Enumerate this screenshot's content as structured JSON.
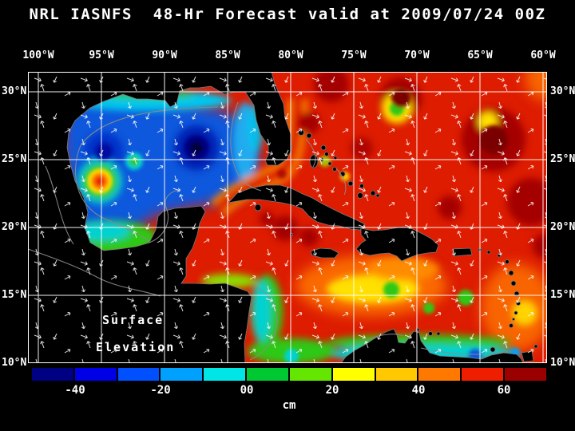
{
  "title": "NRL IASNFS  48-Hr Forecast valid at 2009/07/24 00Z",
  "axes": {
    "top": [
      "100°W",
      "95°W",
      "90°W",
      "85°W",
      "80°W",
      "75°W",
      "70°W",
      "65°W",
      "60°W"
    ],
    "left": [
      "30°N",
      "25°N",
      "20°N",
      "15°N",
      "10°N"
    ],
    "right": [
      "30°N",
      "25°N",
      "20°N",
      "15°N",
      "10°N"
    ]
  },
  "map_labels": {
    "line1": "Surface",
    "line2": "Elevation"
  },
  "colorbar": {
    "unit": "cm",
    "tick_labels": [
      "-40",
      "-20",
      "00",
      "20",
      "40",
      "60"
    ],
    "colors": [
      "#000082",
      "#0000E6",
      "#0050FF",
      "#00A0FF",
      "#00E6E6",
      "#00C832",
      "#64E600",
      "#FFFF00",
      "#FFC800",
      "#FF7800",
      "#F01E00",
      "#9B0000"
    ]
  },
  "chart_data": {
    "type": "heatmap",
    "title": "NRL IASNFS 48-Hr Forecast valid at 2009/07/24 00Z",
    "variable": "Surface Elevation",
    "unit": "cm",
    "x_ticks": [
      "100°W",
      "95°W",
      "90°W",
      "85°W",
      "80°W",
      "75°W",
      "70°W",
      "65°W",
      "60°W"
    ],
    "y_ticks": [
      "30°N",
      "25°N",
      "20°N",
      "15°N",
      "10°N"
    ],
    "colorbar_tick_values": [
      -40,
      -20,
      0,
      20,
      40,
      60
    ],
    "colorbar_range": [
      -50,
      70
    ],
    "grid": true,
    "legend_position": "bottom",
    "features": [
      "Gulf of Mexico mostly negative elevation (blue, -20 to -50 cm) with an intense low centered near 90W 26N",
      "Warm anticyclonic eddy (+20 to +40 cm ring structure) near 95.5W 23.5N in the western Gulf",
      "Loop Current / Gulf Stream red band through Yucatan Channel, Florida Straits and up the Florida east coast",
      "Atlantic east of the Bahamas broadly +40 to +70 cm (red to dark red) with scattered green/yellow lows",
      "Caribbean Sea +20 to +50 cm with a 0 to -10 cm (cyan) band along the Venezuela and Colombia coasts",
      "White vectors denote surface currents; gray lines are coastline and bathymetry contours"
    ]
  }
}
